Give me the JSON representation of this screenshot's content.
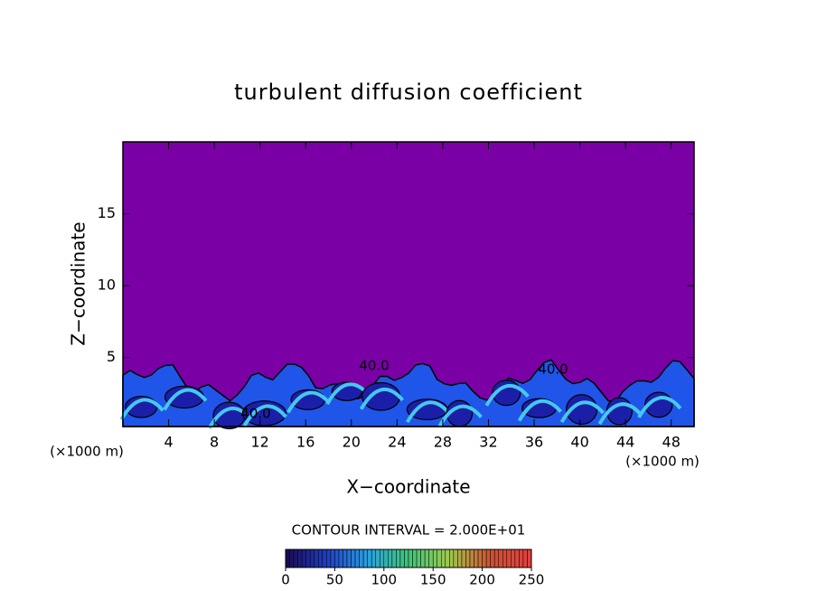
{
  "chart_data": {
    "type": "contour",
    "title": "turbulent diffusion coefficient",
    "x_label": "X−coordinate",
    "y_label": "Z−coordinate",
    "x_unit": "(×1000 m)",
    "xlim": [
      0,
      50
    ],
    "xticks": [
      4,
      8,
      12,
      16,
      20,
      24,
      28,
      32,
      36,
      40,
      44,
      48
    ],
    "ylim": [
      0.2,
      20
    ],
    "yticks": [
      5,
      10,
      15
    ],
    "contour_labels": [
      "40.0",
      "40.0",
      "40.0"
    ],
    "contour_interval": "CONTOUR INTERVAL = 2.000E+01",
    "colorbar": {
      "lim": [
        0,
        250
      ],
      "ticks": [
        0,
        50,
        100,
        150,
        200,
        250
      ],
      "colors": [
        "#1a0a50",
        "#1e3cc8",
        "#28a0e0",
        "#3cc878",
        "#a0c850",
        "#d05030",
        "#e04040"
      ]
    },
    "background_color": "#7a00a6"
  }
}
